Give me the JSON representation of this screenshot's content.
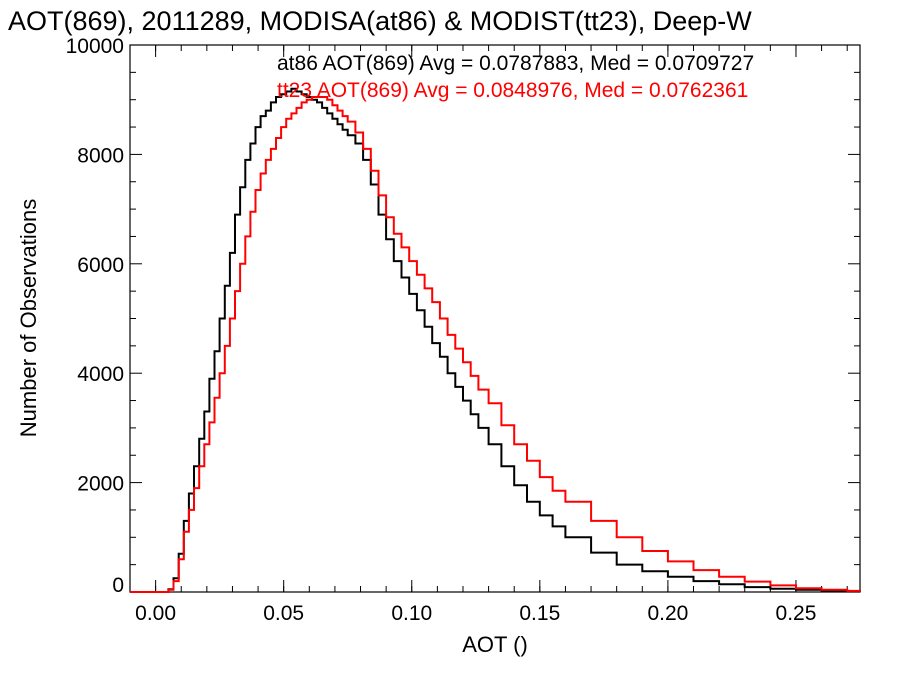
{
  "chart_data": {
    "type": "line",
    "title": "AOT(869), 2011289, MODISA(at86) & MODIST(tt23), Deep-W",
    "xlabel": "AOT ()",
    "ylabel": "Number of Observations",
    "xlim": [
      -0.01,
      0.275
    ],
    "ylim": [
      0,
      10000
    ],
    "x_ticks": [
      "0.00",
      "0.05",
      "0.10",
      "0.15",
      "0.20",
      "0.25"
    ],
    "y_ticks": [
      "0",
      "2000",
      "4000",
      "6000",
      "8000",
      "10000"
    ],
    "grid": false,
    "legend_position": "top-right",
    "annotations": [
      "at86 AOT(869) Avg = 0.0787883, Med = 0.0709727",
      "tt23 AOT(869) Avg = 0.0848976, Med = 0.0762361"
    ],
    "series": [
      {
        "color": "#000000",
        "x": [
          -0.01,
          0.0,
          0.005,
          0.007,
          0.009,
          0.011,
          0.013,
          0.015,
          0.017,
          0.019,
          0.021,
          0.023,
          0.025,
          0.027,
          0.029,
          0.031,
          0.033,
          0.035,
          0.037,
          0.039,
          0.041,
          0.043,
          0.045,
          0.047,
          0.049,
          0.051,
          0.053,
          0.055,
          0.057,
          0.059,
          0.061,
          0.063,
          0.065,
          0.067,
          0.069,
          0.071,
          0.073,
          0.075,
          0.078,
          0.081,
          0.084,
          0.087,
          0.09,
          0.093,
          0.096,
          0.099,
          0.102,
          0.105,
          0.108,
          0.111,
          0.114,
          0.117,
          0.12,
          0.123,
          0.126,
          0.13,
          0.135,
          0.14,
          0.145,
          0.15,
          0.155,
          0.16,
          0.17,
          0.18,
          0.19,
          0.2,
          0.21,
          0.22,
          0.23,
          0.24,
          0.25,
          0.26,
          0.27,
          0.275
        ],
        "y": [
          0,
          0,
          50,
          250,
          700,
          1300,
          1800,
          2300,
          2800,
          3300,
          3900,
          4400,
          5000,
          5600,
          6200,
          6900,
          7400,
          7900,
          8200,
          8500,
          8700,
          8800,
          8950,
          9050,
          9100,
          9150,
          9200,
          9150,
          9100,
          9050,
          9000,
          8950,
          8850,
          8750,
          8650,
          8550,
          8450,
          8350,
          8200,
          7900,
          7450,
          6900,
          6450,
          6050,
          5750,
          5450,
          5150,
          4850,
          4550,
          4300,
          4000,
          3750,
          3500,
          3250,
          3000,
          2700,
          2300,
          1950,
          1650,
          1400,
          1200,
          1000,
          720,
          500,
          380,
          280,
          200,
          140,
          90,
          60,
          40,
          20,
          10,
          5
        ]
      },
      {
        "color": "#ff0000",
        "x": [
          -0.01,
          0.0,
          0.005,
          0.007,
          0.009,
          0.011,
          0.013,
          0.015,
          0.017,
          0.019,
          0.021,
          0.023,
          0.025,
          0.027,
          0.029,
          0.031,
          0.033,
          0.035,
          0.037,
          0.039,
          0.041,
          0.043,
          0.045,
          0.047,
          0.049,
          0.051,
          0.053,
          0.055,
          0.057,
          0.059,
          0.061,
          0.063,
          0.065,
          0.067,
          0.069,
          0.071,
          0.073,
          0.075,
          0.078,
          0.081,
          0.084,
          0.087,
          0.09,
          0.093,
          0.096,
          0.099,
          0.102,
          0.105,
          0.108,
          0.111,
          0.114,
          0.117,
          0.12,
          0.123,
          0.126,
          0.13,
          0.135,
          0.14,
          0.145,
          0.15,
          0.155,
          0.16,
          0.17,
          0.18,
          0.19,
          0.2,
          0.21,
          0.22,
          0.23,
          0.24,
          0.25,
          0.26,
          0.27,
          0.275
        ],
        "y": [
          0,
          0,
          40,
          200,
          600,
          1100,
          1500,
          1900,
          2300,
          2700,
          3100,
          3550,
          4000,
          4500,
          5000,
          5500,
          6000,
          6500,
          6950,
          7350,
          7650,
          7900,
          8100,
          8300,
          8500,
          8650,
          8750,
          8850,
          8950,
          9000,
          9050,
          9050,
          9050,
          9000,
          8900,
          8800,
          8700,
          8600,
          8400,
          8100,
          7700,
          7250,
          6850,
          6550,
          6300,
          6050,
          5800,
          5550,
          5300,
          5000,
          4700,
          4450,
          4200,
          3950,
          3700,
          3450,
          3050,
          2700,
          2400,
          2100,
          1850,
          1650,
          1300,
          1000,
          750,
          560,
          400,
          280,
          190,
          120,
          70,
          40,
          20,
          10
        ]
      }
    ]
  }
}
